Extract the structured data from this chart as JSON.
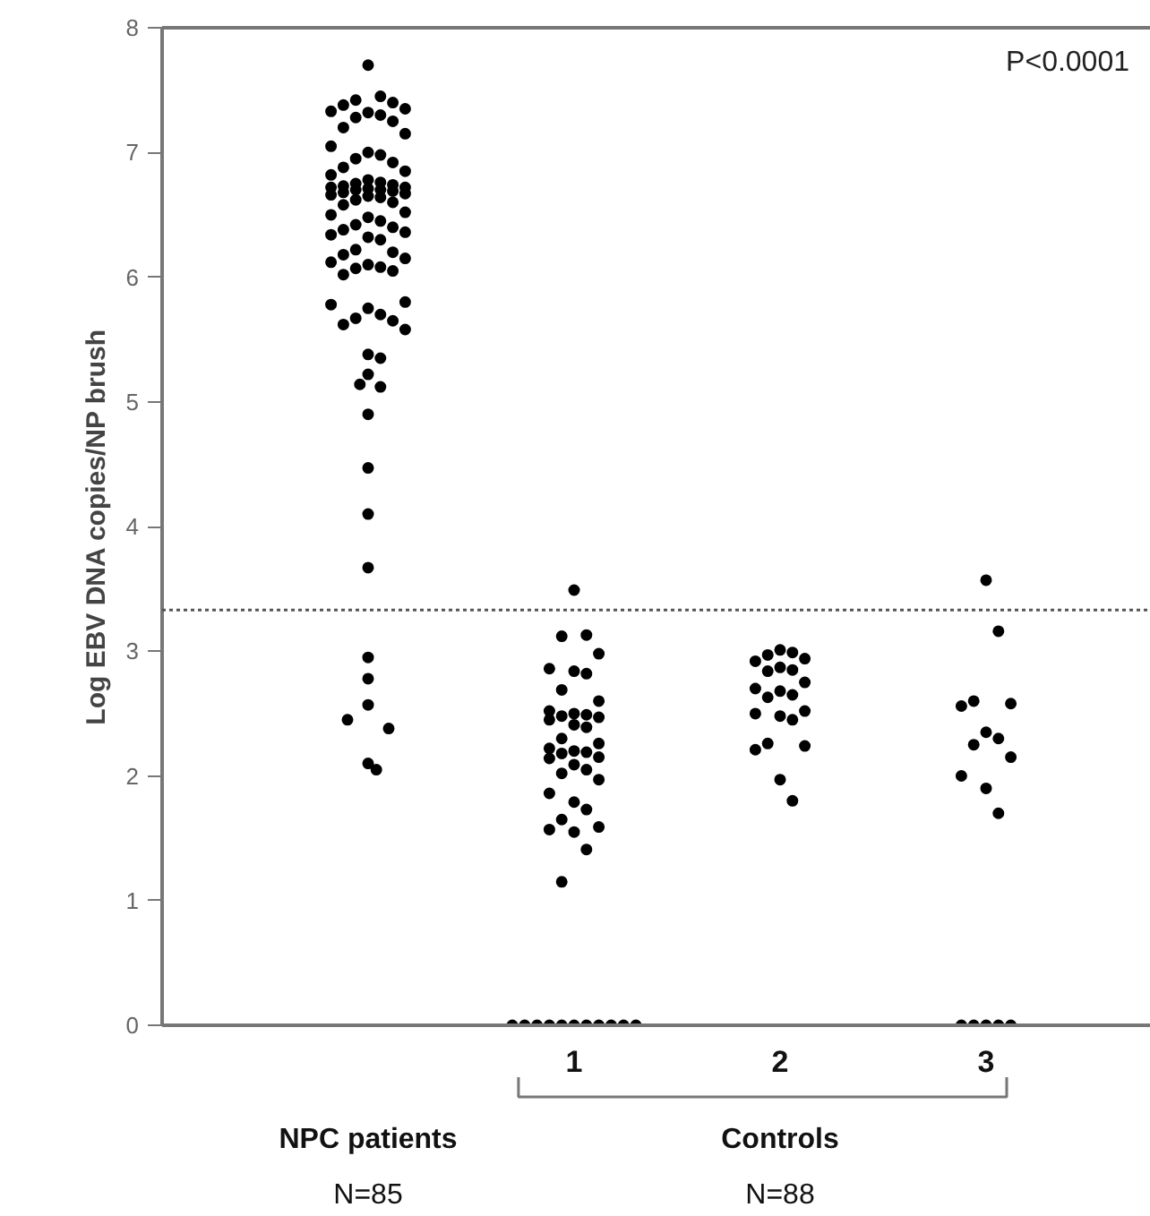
{
  "chart_data": {
    "type": "scatter",
    "ylabel": "Log EBV DNA copies/NP brush",
    "xlim": [
      -1,
      3.8
    ],
    "xticks": [
      1,
      2,
      3
    ],
    "ylim": [
      0,
      8
    ],
    "yticks": [
      0,
      1,
      2,
      3,
      4,
      5,
      6,
      7,
      8
    ],
    "grid": false,
    "marker": "circle",
    "series": [
      {
        "color": "#000000",
        "x": [
          0,
          0.06,
          -0.06,
          0.12,
          -0.12,
          0.18,
          -0.18,
          0,
          0.06,
          -0.06,
          0.12,
          -0.12,
          0.18,
          -0.18,
          0,
          0.06,
          -0.06,
          0.12,
          -0.12,
          0.18,
          -0.18,
          0,
          0.06,
          -0.06,
          0.12,
          -0.12,
          0.18,
          -0.18,
          0,
          0.06,
          -0.06,
          0.12,
          -0.12,
          0.18,
          -0.18,
          0,
          0.06,
          -0.06,
          0.12,
          -0.12,
          0.18,
          -0.18,
          0,
          0.06,
          -0.06,
          0.12,
          -0.12,
          0.18,
          -0.18,
          0,
          0.06,
          -0.06,
          0.12,
          -0.12,
          0.18,
          -0.18,
          0,
          0.06,
          -0.06,
          0.12,
          -0.12,
          0.18,
          -0.18,
          0,
          0.06,
          -0.06,
          0.12,
          -0.12,
          0.18,
          0,
          0.06,
          0,
          -0.04,
          0.06,
          0,
          0,
          0,
          0,
          0,
          0,
          0,
          -0.1,
          0.1,
          0,
          0.04
        ],
        "values": [
          7.7,
          7.45,
          7.42,
          7.4,
          7.38,
          7.35,
          7.33,
          7.32,
          7.3,
          7.28,
          7.25,
          7.2,
          7.15,
          7.05,
          7.0,
          6.98,
          6.95,
          6.92,
          6.88,
          6.85,
          6.82,
          6.78,
          6.76,
          6.75,
          6.74,
          6.73,
          6.72,
          6.72,
          6.71,
          6.7,
          6.7,
          6.69,
          6.68,
          6.67,
          6.66,
          6.65,
          6.64,
          6.62,
          6.6,
          6.58,
          6.52,
          6.5,
          6.48,
          6.45,
          6.42,
          6.4,
          6.38,
          6.36,
          6.34,
          6.32,
          6.3,
          6.22,
          6.2,
          6.18,
          6.15,
          6.12,
          6.1,
          6.08,
          6.07,
          6.05,
          6.02,
          5.8,
          5.78,
          5.75,
          5.7,
          5.67,
          5.65,
          5.62,
          5.58,
          5.38,
          5.35,
          5.22,
          5.14,
          5.12,
          4.9,
          4.47,
          4.1,
          3.67,
          2.95,
          2.78,
          2.57,
          2.45,
          2.38,
          2.1,
          2.05
        ]
      },
      {
        "color": "#000000",
        "x": [
          1,
          1.06,
          0.94,
          1.12,
          0.88,
          1,
          1.06,
          0.94,
          1.12,
          0.88,
          1,
          1.06,
          0.94,
          1.12,
          0.88,
          1,
          1.06,
          0.94,
          1.12,
          0.88,
          1,
          1.06,
          0.94,
          1.12,
          0.88,
          1,
          1.06,
          0.94,
          1.12,
          0.88,
          1,
          1.06,
          0.94,
          1.12,
          0.88,
          1,
          1.06,
          0.94,
          0.7,
          0.76,
          0.82,
          0.88,
          0.94,
          1,
          1.06,
          1.12,
          1.18,
          1.24,
          1.3
        ],
        "values": [
          3.49,
          3.13,
          3.12,
          2.98,
          2.86,
          2.84,
          2.82,
          2.69,
          2.6,
          2.52,
          2.5,
          2.49,
          2.48,
          2.47,
          2.45,
          2.41,
          2.39,
          2.3,
          2.26,
          2.22,
          2.2,
          2.19,
          2.18,
          2.15,
          2.14,
          2.09,
          2.05,
          2.02,
          1.97,
          1.86,
          1.79,
          1.73,
          1.65,
          1.59,
          1.57,
          1.55,
          1.41,
          1.15,
          0,
          0,
          0,
          0,
          0,
          0,
          0,
          0,
          0,
          0,
          0
        ]
      },
      {
        "color": "#000000",
        "x": [
          2,
          2.06,
          1.94,
          2.12,
          1.88,
          2,
          2.06,
          1.94,
          2.12,
          1.88,
          2,
          2.06,
          1.94,
          2.12,
          1.88,
          2,
          2.06,
          1.94,
          2.12,
          1.88,
          2,
          2.06
        ],
        "values": [
          3.01,
          2.99,
          2.97,
          2.94,
          2.92,
          2.87,
          2.85,
          2.84,
          2.75,
          2.7,
          2.68,
          2.65,
          2.63,
          2.52,
          2.5,
          2.48,
          2.45,
          2.26,
          2.24,
          2.21,
          1.97,
          1.8
        ]
      },
      {
        "color": "#000000",
        "x": [
          3,
          3.06,
          2.94,
          3.12,
          2.88,
          3,
          3.06,
          2.94,
          3.12,
          2.88,
          3,
          3.06,
          2.88,
          2.94,
          3,
          3.06,
          3.12
        ],
        "values": [
          3.57,
          3.16,
          2.6,
          2.58,
          2.56,
          2.35,
          2.3,
          2.25,
          2.15,
          2.0,
          1.9,
          1.7,
          0,
          0,
          0,
          0,
          0
        ]
      }
    ],
    "ref_lines": [
      {
        "axis": "y",
        "value": 3.33,
        "color": "#555555",
        "line_style": "dotted"
      }
    ],
    "annotations": [
      "P<0.0001",
      "NPC patients",
      "Controls",
      "N=85",
      "N=88"
    ]
  }
}
